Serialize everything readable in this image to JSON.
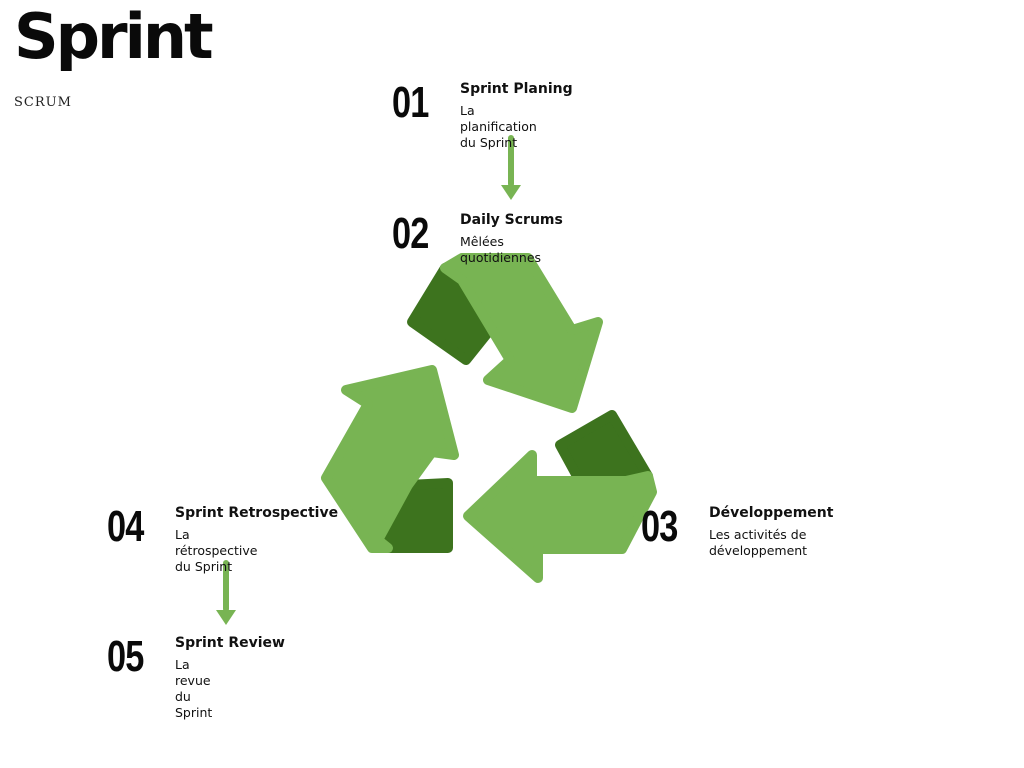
{
  "header": {
    "title": "Sprint",
    "subtitle": "SCRUM"
  },
  "steps": [
    {
      "num": "01",
      "name": "Sprint Planing",
      "desc": "La planification du Sprint"
    },
    {
      "num": "02",
      "name": "Daily Scrums",
      "desc": "Mêlées quotidiennes"
    },
    {
      "num": "03",
      "name": "Développement",
      "desc": "Les activités de développement"
    },
    {
      "num": "04",
      "name": "Sprint Retrospective",
      "desc": "La rétrospective du Sprint"
    },
    {
      "num": "05",
      "name": "Sprint Review",
      "desc": "La revue du Sprint"
    }
  ],
  "colors": {
    "arrow_light": "#78b453",
    "arrow_dark": "#3d731e",
    "text": "#0a0a0a"
  },
  "icons": [
    "recycle-cycle-icon",
    "arrow-down-icon"
  ]
}
